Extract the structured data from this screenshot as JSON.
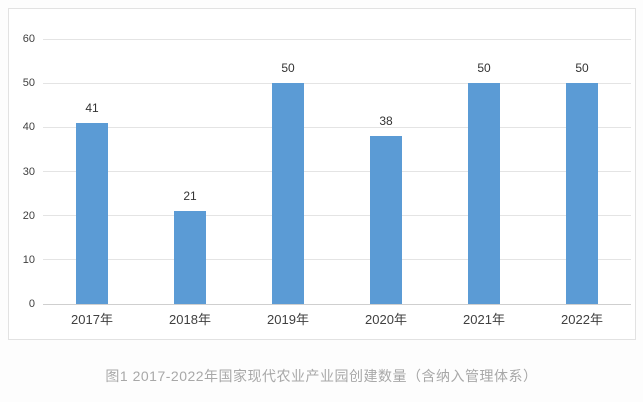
{
  "page": {
    "background": "#fdfdfd",
    "caption": "图1 2017-2022年国家现代农业产业园创建数量（含纳入管理体系）"
  },
  "chart_data": {
    "type": "bar",
    "title": "",
    "xlabel": "",
    "ylabel": "",
    "categories": [
      "2017年",
      "2018年",
      "2019年",
      "2020年",
      "2021年",
      "2022年"
    ],
    "values": [
      41,
      21,
      50,
      38,
      50,
      50
    ],
    "data_labels": [
      "41",
      "21",
      "50",
      "38",
      "50",
      "50"
    ],
    "ylim": [
      0,
      60
    ],
    "yticks": [
      0,
      10,
      20,
      30,
      40,
      50,
      60
    ],
    "grid": true,
    "legend": "none",
    "colors": {
      "bar_fill": "#5B9BD5",
      "gridline": "#e4e4e4",
      "axis_line": "#cfcfcf",
      "tick_label": "#404040",
      "data_label": "#333333",
      "caption": "#a8a8a8",
      "panel_background": "#ffffff",
      "panel_border": "#e2e2e2"
    }
  }
}
